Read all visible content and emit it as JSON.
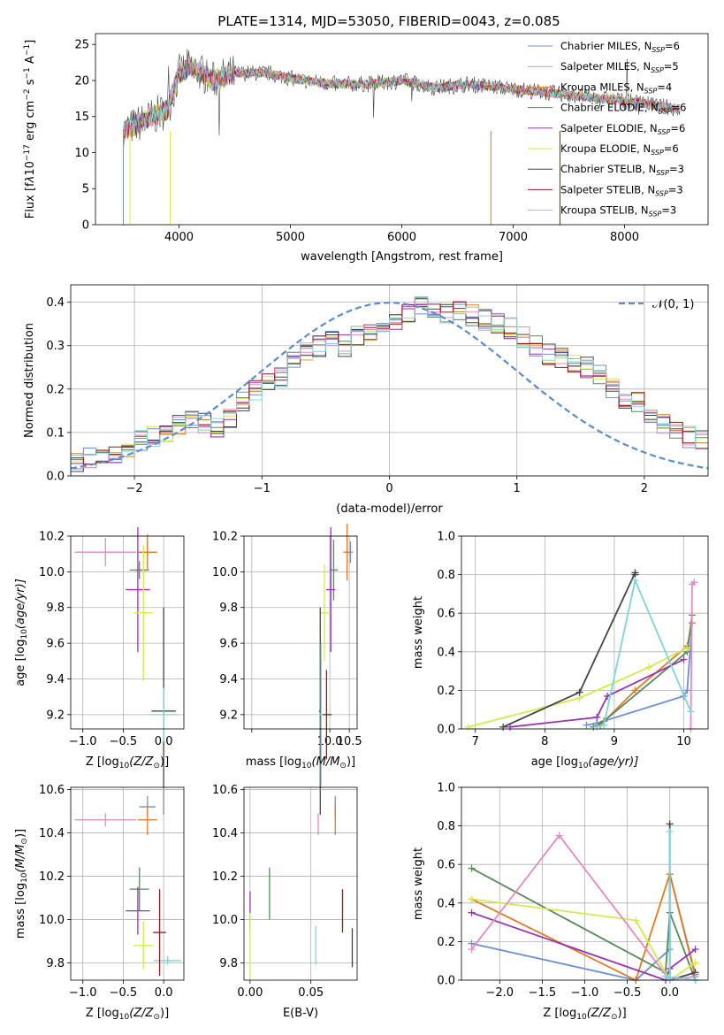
{
  "palette": {
    "c1": "#6d8fd6",
    "c2": "#e07a22",
    "c3": "#5a8a5a",
    "c4": "#9933b3",
    "c5": "#d4ea4a",
    "c6": "#444444",
    "c7": "#e38ac2",
    "c8": "#8b1a1a",
    "c9": "#7fd4dc",
    "normal": "#5b8bd0"
  },
  "chart_data": [
    {
      "id": "spectrum",
      "type": "line",
      "title": "PLATE=1314, MJD=53050, FIBERID=0043, z=0.085",
      "xlabel": "wavelength [Angstrom, rest frame]",
      "ylabel_parts": [
        "Flux [f",
        "λ",
        "10",
        "−17",
        " erg cm",
        "−2",
        " s",
        "−1",
        " A",
        "−1",
        "]"
      ],
      "xlim": [
        3250,
        8750
      ],
      "ylim": [
        0,
        26.5
      ],
      "xticks": [
        4000,
        5000,
        6000,
        7000,
        8000
      ],
      "yticks": [
        0,
        5,
        10,
        15,
        20,
        25
      ],
      "legend_position": "upper right",
      "legend": [
        {
          "prefix": "Chabrier MILES, N",
          "sub": "SSP",
          "suffix": "=6",
          "color": "#6d8fd6"
        },
        {
          "prefix": "Salpeter MILES, N",
          "sub": "SSP",
          "suffix": "=5",
          "color": "#e38ac2"
        },
        {
          "prefix": "Kroupa MILES, N",
          "sub": "SSP",
          "suffix": "=4",
          "color": "#e07a22"
        },
        {
          "prefix": "Chabrier ELODIE, N",
          "sub": "SSP",
          "suffix": "=6",
          "color": "#5a8a5a"
        },
        {
          "prefix": "Salpeter ELODIE, N",
          "sub": "SSP",
          "suffix": "=6",
          "color": "#9933b3"
        },
        {
          "prefix": "Kroupa ELODIE, N",
          "sub": "SSP",
          "suffix": "=6",
          "color": "#d4ea4a"
        },
        {
          "prefix": "Chabrier STELIB, N",
          "sub": "SSP",
          "suffix": "=3",
          "color": "#444444"
        },
        {
          "prefix": "Salpeter STELIB, N",
          "sub": "SSP",
          "suffix": "=3",
          "color": "#8b1a1a"
        },
        {
          "prefix": "Kroupa STELIB, N",
          "sub": "SSP",
          "suffix": "=3",
          "color": "#7fd4dc"
        }
      ],
      "data_series": {
        "wavelength": [
          3500,
          3700,
          3900,
          4000,
          4100,
          4300,
          4500,
          4800,
          5100,
          5400,
          5700,
          6000,
          6300,
          6600,
          6900,
          7200,
          7500,
          7800,
          8100,
          8500
        ],
        "flux": [
          13,
          14.5,
          16,
          21,
          22,
          20,
          21,
          21,
          20,
          19.5,
          19.5,
          20,
          19,
          19.5,
          19,
          18.5,
          18,
          17.5,
          17,
          16
        ]
      }
    },
    {
      "id": "residuals",
      "type": "step",
      "xlabel": "(data-model)/error",
      "ylabel": "Normed distribution",
      "xlim": [
        -2.5,
        2.5
      ],
      "ylim": [
        0,
        0.44
      ],
      "xticks": [
        -2,
        -1,
        0,
        1,
        2
      ],
      "yticks": [
        0.0,
        0.1,
        0.2,
        0.3,
        0.4
      ],
      "legend": [
        {
          "label": "𝒩(0, 1)",
          "color": "#5b8bd0",
          "style": "dashed"
        }
      ],
      "legend_position": "upper right",
      "bin_width": 0.1,
      "hist_envelope": [
        0.03,
        0.04,
        0.05,
        0.05,
        0.06,
        0.08,
        0.09,
        0.1,
        0.12,
        0.13,
        0.12,
        0.11,
        0.13,
        0.17,
        0.2,
        0.21,
        0.23,
        0.26,
        0.29,
        0.3,
        0.31,
        0.3,
        0.32,
        0.33,
        0.34,
        0.35,
        0.37,
        0.39,
        0.38,
        0.37,
        0.38,
        0.37,
        0.36,
        0.35,
        0.34,
        0.32,
        0.3,
        0.28,
        0.27,
        0.26,
        0.25,
        0.23,
        0.2,
        0.18,
        0.17,
        0.14,
        0.12,
        0.1,
        0.09,
        0.08
      ]
    },
    {
      "id": "age_vs_Z",
      "type": "errorbar",
      "xlabel_parts": [
        "Z [log",
        "10",
        "(Z/Z",
        "⊙",
        ")]"
      ],
      "ylabel_parts": [
        "age  [log",
        "10",
        "(age/yr)]"
      ],
      "xlim": [
        -1.15,
        0.25
      ],
      "ylim": [
        9.12,
        10.2
      ],
      "xticks": [
        -1.0,
        -0.5,
        0.0
      ],
      "yticks": [
        9.2,
        9.4,
        9.6,
        9.8,
        10.0,
        10.2
      ],
      "points": [
        {
          "x": -0.2,
          "y": 10.11,
          "xerr": 0.1,
          "yerr": 0.08,
          "c": "c1"
        },
        {
          "x": -0.2,
          "y": 10.11,
          "xerr": 0.12,
          "yerr": 0.1,
          "c": "c2"
        },
        {
          "x": -0.72,
          "y": 10.11,
          "xerr": 0.38,
          "yerr": 0.08,
          "c": "c7"
        },
        {
          "x": -0.3,
          "y": 10.01,
          "xerr": 0.12,
          "yerr": 0.05,
          "c": "c3"
        },
        {
          "x": -0.32,
          "y": 9.9,
          "xerr": 0.15,
          "yerr": 0.35,
          "c": "c4"
        },
        {
          "x": -0.25,
          "y": 9.77,
          "xerr": 0.12,
          "yerr": 0.38,
          "c": "c5"
        },
        {
          "x": 0.0,
          "y": 9.22,
          "xerr": 0.15,
          "yerr": 0.58,
          "c": "c6"
        },
        {
          "x": 0.0,
          "y": 9.2,
          "xerr": 0.17,
          "yerr": 0.15,
          "c": "c9"
        }
      ]
    },
    {
      "id": "age_vs_mass",
      "type": "errorbar",
      "xlabel_parts": [
        "mass [log",
        "10",
        "(M/M",
        "⊙",
        ")]"
      ],
      "xlim": [
        7.8,
        10.7
      ],
      "ylim": [
        9.12,
        10.2
      ],
      "xticks": [
        8.0,
        10.0,
        10.5
      ],
      "tick_labels": [
        "",
        "10.0",
        "10.5"
      ],
      "x_scale": "linear-9.75-to-10.6",
      "yticks": [
        9.2,
        9.4,
        9.6,
        9.8,
        10.0,
        10.2
      ],
      "points": [
        {
          "x": 10.52,
          "y": 10.11,
          "xerr": 0.06,
          "yerr": 0.06,
          "c": "c1"
        },
        {
          "x": 10.44,
          "y": 10.11,
          "xerr": 0.09,
          "yerr": 0.16,
          "c": "c2"
        },
        {
          "x": 10.12,
          "y": 10.01,
          "xerr": 0.1,
          "yerr": 0.17,
          "c": "c3"
        },
        {
          "x": 10.05,
          "y": 9.9,
          "xerr": 0.11,
          "yerr": 0.35,
          "c": "c4"
        },
        {
          "x": 9.9,
          "y": 9.77,
          "xerr": 0.11,
          "yerr": 0.27,
          "c": "c5"
        },
        {
          "x": 9.8,
          "y": 9.22,
          "xerr": 0.03,
          "yerr": 0.58,
          "c": "c6"
        },
        {
          "x": 9.95,
          "y": 9.2,
          "xerr": 0.12,
          "yerr": 0.25,
          "c": "c8"
        },
        {
          "x": 9.82,
          "y": 9.2,
          "xerr": 0.04,
          "yerr": 0.4,
          "c": "c9"
        }
      ]
    },
    {
      "id": "weight_vs_age",
      "type": "line",
      "xlabel_parts": [
        "age  [log",
        "10",
        "(age/yr)]"
      ],
      "ylabel": "mass weight",
      "xlim": [
        6.8,
        10.35
      ],
      "ylim": [
        0,
        1.0
      ],
      "xticks": [
        7,
        8,
        9,
        10
      ],
      "yticks": [
        0.0,
        0.2,
        0.4,
        0.6,
        0.8,
        1.0
      ],
      "series": [
        {
          "c": "c1",
          "x": [
            8.6,
            8.75,
            10.0,
            10.05,
            10.12
          ],
          "y": [
            0.02,
            0.03,
            0.17,
            0.2,
            0.55
          ]
        },
        {
          "c": "c2",
          "x": [
            8.8,
            9.3,
            10.05,
            10.12
          ],
          "y": [
            0.02,
            0.2,
            0.43,
            0.55
          ]
        },
        {
          "c": "c3",
          "x": [
            8.7,
            8.85,
            10.05,
            10.12
          ],
          "y": [
            0.01,
            0.04,
            0.4,
            0.59
          ]
        },
        {
          "c": "c4",
          "x": [
            7.5,
            8.75,
            8.9,
            10.0
          ],
          "y": [
            0.01,
            0.06,
            0.17,
            0.36
          ]
        },
        {
          "c": "c5",
          "x": [
            6.9,
            8.5,
            9.5,
            10.05
          ],
          "y": [
            0.01,
            0.16,
            0.32,
            0.42
          ]
        },
        {
          "c": "c6",
          "x": [
            7.4,
            8.5,
            9.3,
            9.3
          ],
          "y": [
            0.01,
            0.19,
            0.81,
            0.8
          ]
        },
        {
          "c": "c7",
          "x": [
            10.1,
            10.12,
            10.15
          ],
          "y": [
            0.0,
            0.75,
            0.76
          ]
        },
        {
          "c": "c9",
          "x": [
            8.75,
            8.85,
            9.3,
            10.1
          ],
          "y": [
            0.01,
            0.02,
            0.77,
            0.09
          ]
        }
      ]
    },
    {
      "id": "mass_vs_Z",
      "type": "errorbar",
      "xlabel_parts": [
        "Z [log",
        "10",
        "(Z/Z",
        "⊙",
        ")]"
      ],
      "ylabel_parts": [
        "mass [log",
        "10",
        "(M/M",
        "⊙",
        ")]"
      ],
      "xlim": [
        -1.15,
        0.25
      ],
      "ylim": [
        9.72,
        10.61
      ],
      "xticks": [
        -1.0,
        -0.5,
        0.0
      ],
      "yticks": [
        9.8,
        10.0,
        10.2,
        10.4,
        10.6
      ],
      "points": [
        {
          "x": -0.2,
          "y": 10.52,
          "xerr": 0.1,
          "yerr": 0.05,
          "c": "c1"
        },
        {
          "x": -0.2,
          "y": 10.46,
          "xerr": 0.12,
          "yerr": 0.07,
          "c": "c2"
        },
        {
          "x": -0.72,
          "y": 10.46,
          "xerr": 0.38,
          "yerr": 0.03,
          "c": "c7"
        },
        {
          "x": -0.3,
          "y": 10.14,
          "xerr": 0.12,
          "yerr": 0.1,
          "c": "c3"
        },
        {
          "x": -0.32,
          "y": 10.04,
          "xerr": 0.15,
          "yerr": 0.11,
          "c": "c4"
        },
        {
          "x": -0.25,
          "y": 9.88,
          "xerr": 0.12,
          "yerr": 0.11,
          "c": "c5"
        },
        {
          "x": 0.05,
          "y": 9.81,
          "xerr": 0.17,
          "yerr": 0.02,
          "c": "c9"
        },
        {
          "x": -0.05,
          "y": 9.94,
          "xerr": 0.08,
          "yerr": 0.2,
          "c": "c8"
        }
      ]
    },
    {
      "id": "mass_vs_EBV",
      "type": "errorbar",
      "xlabel": "E(B-V)",
      "xlim": [
        -0.005,
        0.088
      ],
      "ylim": [
        9.72,
        10.61
      ],
      "xticks": [
        0.0,
        0.05
      ],
      "yticks": [
        9.8,
        10.0,
        10.2,
        10.4,
        10.6
      ],
      "points": [
        {
          "x": 0.07,
          "y": 10.52,
          "xerr": 0,
          "yerr": 0.05,
          "c": "c1"
        },
        {
          "x": 0.07,
          "y": 10.46,
          "xerr": 0,
          "yerr": 0.07,
          "c": "c2"
        },
        {
          "x": 0.056,
          "y": 10.44,
          "xerr": 0,
          "yerr": 0.05,
          "c": "c7"
        },
        {
          "x": 0.016,
          "y": 10.12,
          "xerr": 0,
          "yerr": 0.12,
          "c": "c3"
        },
        {
          "x": 0.0,
          "y": 10.04,
          "xerr": 0,
          "yerr": 0.09,
          "c": "c4"
        },
        {
          "x": 0.0,
          "y": 9.88,
          "xerr": 0,
          "yerr": 0.15,
          "c": "c5"
        },
        {
          "x": 0.054,
          "y": 9.88,
          "xerr": 0,
          "yerr": 0.09,
          "c": "c9"
        },
        {
          "x": 0.076,
          "y": 10.04,
          "xerr": 0,
          "yerr": 0.1,
          "c": "c8"
        },
        {
          "x": 0.084,
          "y": 9.87,
          "xerr": 0,
          "yerr": 0.09,
          "c": "c6"
        }
      ]
    },
    {
      "id": "weight_vs_Z",
      "type": "line",
      "xlabel_parts": [
        "Z [log",
        "10",
        "(Z/Z",
        "⊙",
        ")]"
      ],
      "ylabel": "mass weight",
      "xlim": [
        -2.45,
        0.45
      ],
      "ylim": [
        0,
        1.0
      ],
      "xticks": [
        -2.0,
        -1.5,
        -1.0,
        -0.5,
        0.0
      ],
      "tick_labels": [
        "−2.0",
        "−1.5",
        "−1.0",
        "−0.5",
        "0.0"
      ],
      "yticks": [
        0.0,
        0.2,
        0.4,
        0.6,
        0.8,
        1.0
      ],
      "series": [
        {
          "c": "c1",
          "x": [
            -2.33,
            -0.4,
            0.0,
            0.0,
            0.3
          ],
          "y": [
            0.19,
            0.0,
            0.16,
            0.55,
            0.03
          ]
        },
        {
          "c": "c2",
          "x": [
            -2.33,
            -0.4,
            0.0,
            0.3
          ],
          "y": [
            0.42,
            0.0,
            0.55,
            0.02
          ]
        },
        {
          "c": "c3",
          "x": [
            -2.33,
            -0.05,
            0.0,
            0.3
          ],
          "y": [
            0.58,
            0.04,
            0.35,
            0.0
          ]
        },
        {
          "c": "c4",
          "x": [
            -2.33,
            -0.05,
            0.0,
            0.3
          ],
          "y": [
            0.35,
            0.0,
            0.06,
            0.16
          ]
        },
        {
          "c": "c5",
          "x": [
            -2.33,
            -0.4,
            0.0,
            0.3
          ],
          "y": [
            0.42,
            0.31,
            0.0,
            0.09
          ]
        },
        {
          "c": "c6",
          "x": [
            0.0,
            0.0,
            0.3
          ],
          "y": [
            0.81,
            0.0,
            0.04
          ]
        },
        {
          "c": "c7",
          "x": [
            -2.33,
            -1.3,
            0.0,
            0.3
          ],
          "y": [
            0.16,
            0.75,
            0.0,
            0.02
          ]
        },
        {
          "c": "c9",
          "x": [
            0.0,
            0.0,
            -0.05,
            0.3
          ],
          "y": [
            0.77,
            0.0,
            0.02,
            0.0
          ]
        }
      ]
    }
  ]
}
